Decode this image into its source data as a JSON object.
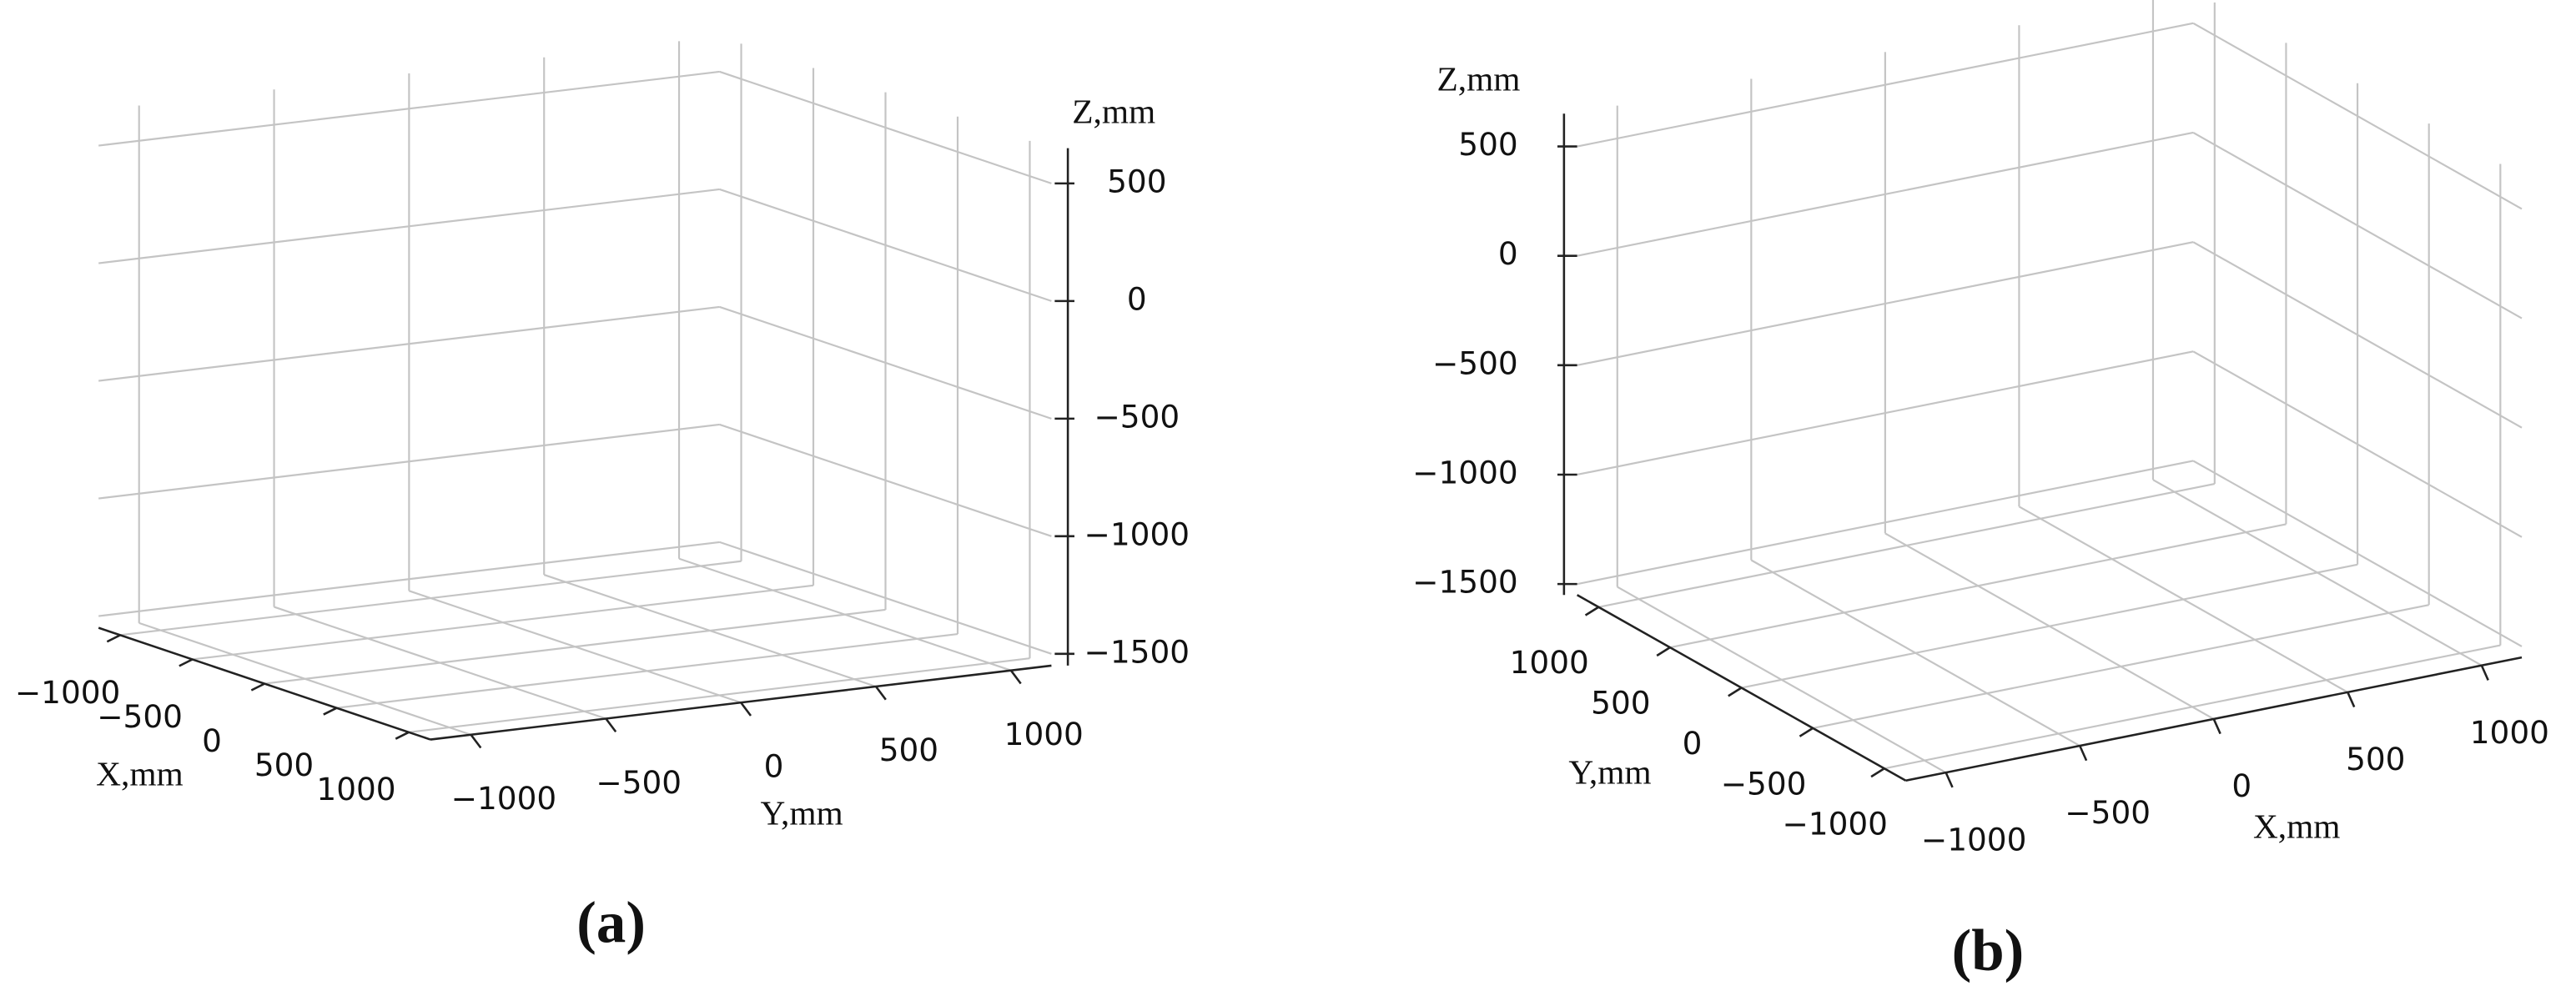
{
  "chart_data": [
    {
      "type": "voxel3d",
      "panel": "(a)",
      "color": "#33cc33",
      "grid": true,
      "x_label": "X,mm",
      "y_label": "Y,mm",
      "z_label": "Z,mm",
      "xlim": [
        -1150,
        1150
      ],
      "ylim": [
        -1150,
        1150
      ],
      "zlim": [
        -1550,
        650
      ],
      "xticks": [
        {
          "value": -1000,
          "label": "−1000"
        },
        {
          "value": -500,
          "label": "−500"
        },
        0,
        500,
        1000
      ],
      "yticks": [
        {
          "value": -1000,
          "label": "−1000"
        },
        {
          "value": -500,
          "label": "−500"
        },
        0,
        500,
        1000
      ],
      "zticks": [
        500,
        0,
        {
          "value": -500,
          "label": "−500"
        },
        {
          "value": -1000,
          "label": "−1000"
        },
        {
          "value": -1500,
          "label": "−1500"
        }
      ]
    },
    {
      "type": "voxel3d",
      "panel": "(b)",
      "color": "#33cc33",
      "grid": true,
      "x_label": "X,mm",
      "y_label": "Y,mm",
      "z_label": "Z,mm",
      "xlim": [
        -1150,
        1150
      ],
      "ylim": [
        -1150,
        1150
      ],
      "zlim": [
        -1550,
        650
      ],
      "xticks": [
        {
          "value": -1000,
          "label": "−1000"
        },
        {
          "value": -500,
          "label": "−500"
        },
        0,
        500,
        1000
      ],
      "yticks": [
        {
          "value": -1000,
          "label": "−1000"
        },
        {
          "value": -500,
          "label": "−500"
        },
        0,
        500,
        1000
      ],
      "zticks": [
        500,
        0,
        {
          "value": -500,
          "label": "−500"
        },
        {
          "value": -1000,
          "label": "−1000"
        },
        {
          "value": -1500,
          "label": "−1500"
        }
      ]
    }
  ]
}
